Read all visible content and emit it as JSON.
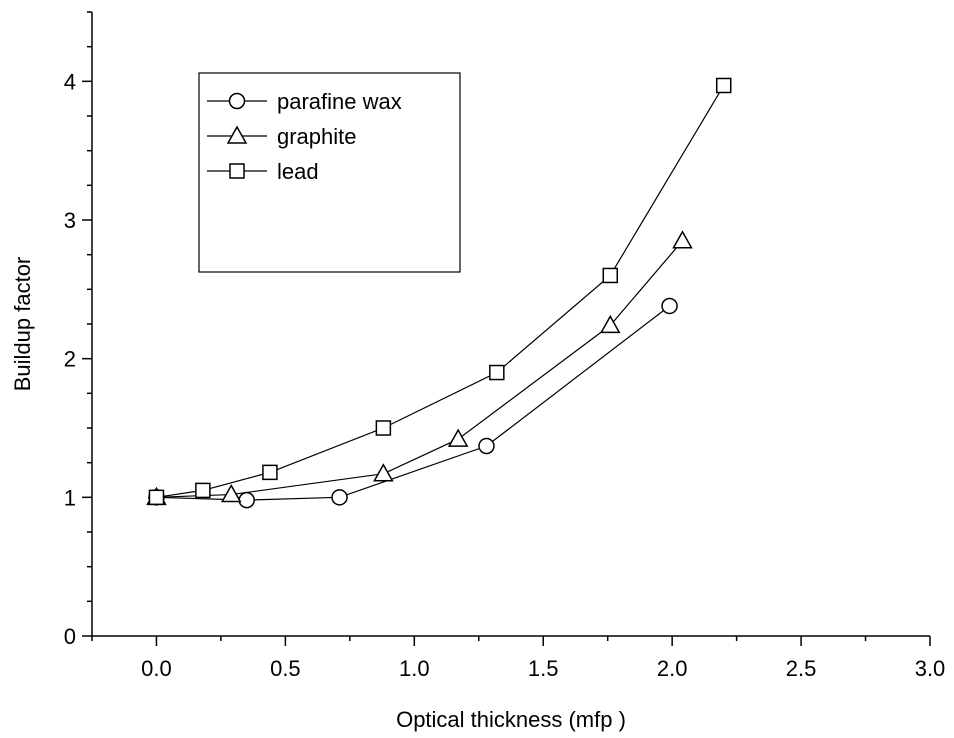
{
  "chart_data": {
    "type": "line",
    "title": "",
    "xlabel": "Optical thickness (mfp )",
    "ylabel": "Buildup factor",
    "xlim": [
      -0.25,
      3.0
    ],
    "ylim": [
      0,
      4.5
    ],
    "x_ticks": [
      "0.0",
      "0.5",
      "1.0",
      "1.5",
      "2.0",
      "2.5",
      "3.0"
    ],
    "y_ticks": [
      "0",
      "1",
      "2",
      "3",
      "4"
    ],
    "grid": false,
    "legend_position": "top-left",
    "series": [
      {
        "name": "parafine wax",
        "marker": "circle",
        "x": [
          0.0,
          0.35,
          0.71,
          1.28,
          1.99
        ],
        "y": [
          1.0,
          0.98,
          1.0,
          1.37,
          2.38
        ]
      },
      {
        "name": "graphite",
        "marker": "triangle",
        "x": [
          0.0,
          0.29,
          0.88,
          1.17,
          1.76,
          2.04
        ],
        "y": [
          1.0,
          1.02,
          1.17,
          1.42,
          2.24,
          2.85
        ]
      },
      {
        "name": "lead",
        "marker": "square",
        "x": [
          0.0,
          0.18,
          0.44,
          0.88,
          1.32,
          1.76,
          2.2
        ],
        "y": [
          1.0,
          1.05,
          1.18,
          1.5,
          1.9,
          2.6,
          3.97
        ]
      }
    ]
  }
}
